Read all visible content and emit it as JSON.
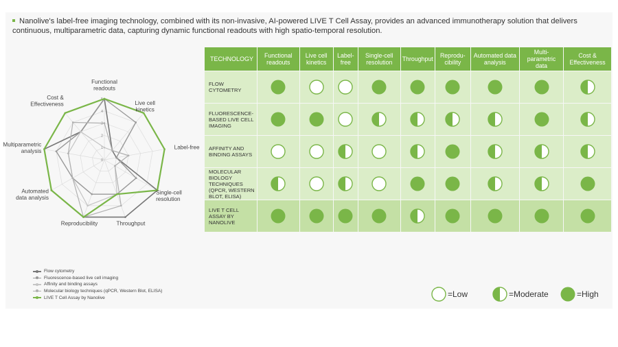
{
  "intro": "Nanolive's label-free imaging technology, combined with its non-invasive, AI-powered LIVE T Cell Assay, provides an advanced immunotherapy solution that delivers continuous, multiparametric data, capturing dynamic functional readouts with high spatio-temporal resolution.",
  "colors": {
    "accent": "#7ab648",
    "cell": "#dbedc8",
    "cell_highlight": "#c4e0a5",
    "header_text": "#ffffff"
  },
  "table": {
    "corner": "TECHNOLOGY",
    "columns": [
      "Functional readouts",
      "Live cell kinetics",
      "Label-free",
      "Single-cell resolution",
      "Throughput",
      "Reprodu-cibility",
      "Automated data analysis",
      "Multi-parametric data",
      "Cost & Effectiveness"
    ],
    "rows": [
      {
        "label": "FLOW CYTOMETRY",
        "ratings": [
          "high",
          "low",
          "low",
          "high",
          "high",
          "high",
          "high",
          "high",
          "moderate"
        ]
      },
      {
        "label": "FLUORESCENCE-BASED LIVE CELL IMAGING",
        "ratings": [
          "high",
          "high",
          "low",
          "moderate",
          "moderate",
          "moderate",
          "moderate",
          "high",
          "moderate"
        ]
      },
      {
        "label": "AFFINITY AND BINDING ASSAYS",
        "ratings": [
          "low",
          "low",
          "moderate",
          "low",
          "moderate",
          "high",
          "moderate",
          "moderate",
          "moderate"
        ]
      },
      {
        "label": "MOLECULAR BIOLOGY TECHNIQUES (qPCR, WESTERN BLOT, ELISA)",
        "ratings": [
          "moderate",
          "low",
          "moderate",
          "low",
          "high",
          "high",
          "moderate",
          "moderate",
          "high"
        ]
      },
      {
        "label": "LIVE T CELL ASSAY BY NANOLIVE",
        "ratings": [
          "high",
          "high",
          "high",
          "high",
          "moderate",
          "high",
          "high",
          "high",
          "high"
        ],
        "highlight": true
      }
    ]
  },
  "key": {
    "low": "=Low",
    "moderate": "=Moderate",
    "high": "=High"
  },
  "chart_data": {
    "type": "radar",
    "axes": [
      "Functional readouts",
      "Live cell kinetics",
      "Label-free",
      "Single-cell resolution",
      "Throughput",
      "Reproducibility",
      "Automated data analysis",
      "Multiparametric analysis",
      "Cost & Effectiveness"
    ],
    "ticks": [
      "0",
      "1",
      "2",
      "3",
      "4",
      "5"
    ],
    "rlim": [
      0,
      5
    ],
    "series": [
      {
        "name": "Flow cytometry",
        "values": [
          5,
          1,
          1,
          5,
          5,
          5,
          5,
          5,
          3
        ],
        "color": "#777777",
        "width": 1.6
      },
      {
        "name": "Fluorescence-based live cell imaging",
        "values": [
          5,
          4,
          1,
          3,
          3,
          3,
          3,
          4,
          3
        ],
        "color": "#999999",
        "width": 1.4
      },
      {
        "name": "Affinity and binding assays",
        "values": [
          1,
          1,
          2,
          1,
          3,
          4,
          3,
          3,
          3
        ],
        "color": "#c4c4c4",
        "width": 1.2
      },
      {
        "name": "Molecular biology techniques (qPCR, Western Blot, ELISA)",
        "values": [
          3,
          1,
          2,
          1,
          4,
          5,
          3,
          3,
          4
        ],
        "color": "#b0b0b0",
        "width": 1.2
      },
      {
        "name": "LIVE T Cell Assay by Nanolive",
        "values": [
          5,
          5,
          5,
          5,
          3,
          5,
          5,
          5,
          5
        ],
        "color": "#7ab648",
        "width": 2.2
      }
    ]
  }
}
